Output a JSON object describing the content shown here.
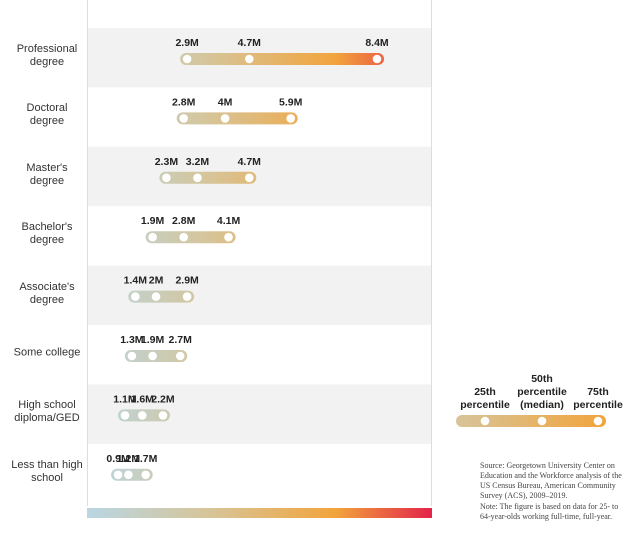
{
  "chart_data": {
    "type": "range-dot",
    "categories": [
      "Professional degree",
      "Doctoral degree",
      "Master's degree",
      "Bachelor's degree",
      "Associate's degree",
      "Some college",
      "High school diploma/GED",
      "Less than high school"
    ],
    "series": [
      {
        "name": "25th percentile",
        "color": "#ffffff",
        "values": [
          2.9,
          2.8,
          2.3,
          1.9,
          1.4,
          1.3,
          1.1,
          0.9
        ],
        "value_labels": [
          "2.9M",
          "2.8M",
          "2.3M",
          "1.9M",
          "1.4M",
          "1.3M",
          "1.1M",
          "0.9M"
        ]
      },
      {
        "name": "50th percentile (median)",
        "color": "#ffffff",
        "values": [
          4.7,
          4,
          3.2,
          2.8,
          2,
          1.9,
          1.6,
          1.2
        ],
        "value_labels": [
          "4.7M",
          "4M",
          "3.2M",
          "2.8M",
          "2M",
          "1.9M",
          "1.6M",
          "1.2M"
        ]
      },
      {
        "name": "75th percentile",
        "color": "#ffffff",
        "values": [
          8.4,
          5.9,
          4.7,
          4.1,
          2.9,
          2.7,
          2.2,
          1.7
        ],
        "value_labels": [
          "8.4M",
          "5.9M",
          "4.7M",
          "4.1M",
          "2.9M",
          "2.7M",
          "2.2M",
          "1.7M"
        ]
      }
    ],
    "source": "Source: Georgetown University Center on Education and the Workforce analysis of the US Census Bureau, American Community Survey (ACS), 2009–2019.",
    "note": "Note: The figure is based on data for 25- to 64-year-olds working full-time, full-year."
  }
}
